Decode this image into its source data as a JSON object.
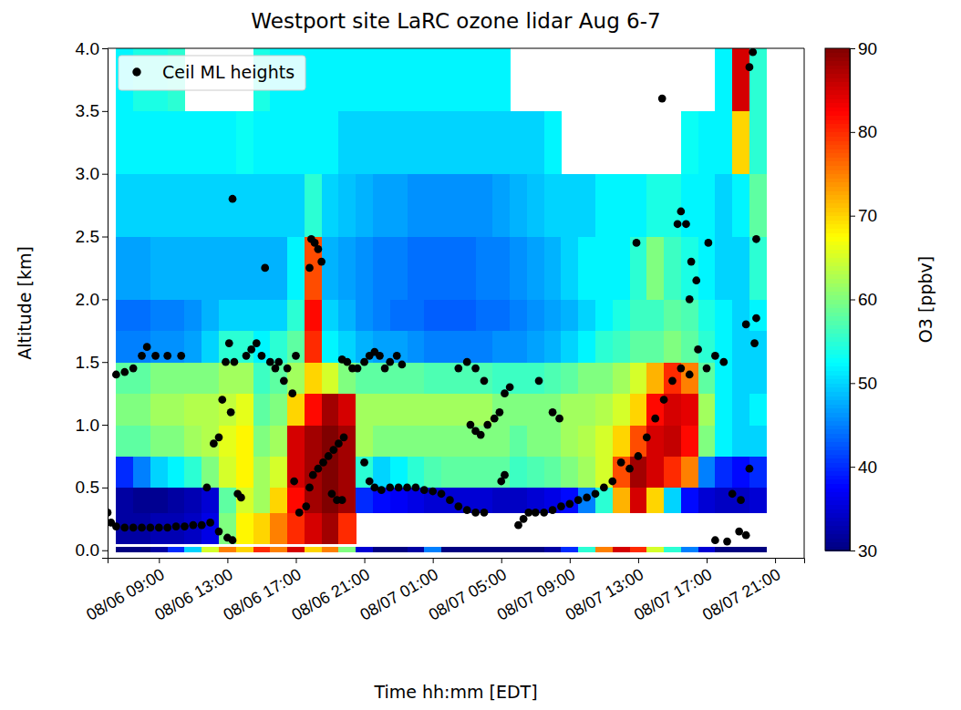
{
  "chart_data": {
    "type": "heatmap",
    "title": "Westport site LaRC ozone lidar Aug 6-7",
    "x_label": "Time hh:mm [EDT]",
    "y_label": "Altitude [km]",
    "xlim": [
      6,
      46.7
    ],
    "ylim": [
      -0.06,
      4.0
    ],
    "xticks": [
      {
        "value": 9,
        "label": "08/06 09:00"
      },
      {
        "value": 13,
        "label": "08/06 13:00"
      },
      {
        "value": 17,
        "label": "08/06 17:00"
      },
      {
        "value": 21,
        "label": "08/06 21:00"
      },
      {
        "value": 25,
        "label": "08/07 01:00"
      },
      {
        "value": 29,
        "label": "08/07 05:00"
      },
      {
        "value": 33,
        "label": "08/07 09:00"
      },
      {
        "value": 37,
        "label": "08/07 13:00"
      },
      {
        "value": 41,
        "label": "08/07 17:00"
      },
      {
        "value": 45,
        "label": "08/07 21:00"
      }
    ],
    "yticks": [
      {
        "value": 0,
        "label": "0.0"
      },
      {
        "value": 0.5,
        "label": "0.5"
      },
      {
        "value": 1,
        "label": "1.0"
      },
      {
        "value": 1.5,
        "label": "1.5"
      },
      {
        "value": 2,
        "label": "2.0"
      },
      {
        "value": 2.5,
        "label": "2.5"
      },
      {
        "value": 3,
        "label": "3.0"
      },
      {
        "value": 3.5,
        "label": "3.5"
      },
      {
        "value": 4,
        "label": "4.0"
      }
    ],
    "grid": false,
    "legend": "upper left",
    "cells": {
      "x_edges": [
        6.5,
        7.5,
        8.5,
        9.5,
        10.5,
        11.5,
        12.5,
        13.5,
        14.5,
        15.5,
        16.5,
        17.5,
        18.5,
        19.5,
        20.5,
        21.5,
        22.5,
        23.5,
        24.5,
        25.5,
        26.5,
        27.5,
        28.5,
        29.5,
        30.5,
        31.5,
        32.5,
        33.5,
        34.5,
        35.5,
        36.5,
        37.5,
        38.5,
        39.5,
        40.5,
        41.5,
        42.5,
        43.5,
        44.5
      ],
      "y_edges": [
        0.05,
        0.3,
        0.5,
        0.75,
        1.0,
        1.25,
        1.5,
        1.75,
        2.0,
        2.5,
        3.0,
        3.5,
        4.0
      ],
      "values": [
        [
          32,
          32,
          33,
          33,
          34,
          36,
          60,
          68,
          70,
          75,
          80,
          85,
          88,
          80,
          null,
          null,
          null,
          null,
          null,
          null,
          null,
          null,
          null,
          null,
          null,
          null,
          null,
          null,
          null,
          null,
          null,
          null,
          null,
          null,
          null,
          null,
          null,
          null
        ],
        [
          32,
          31,
          31,
          32,
          33,
          35,
          58,
          65,
          62,
          70,
          82,
          88,
          90,
          88,
          40,
          38,
          37,
          36,
          35,
          35,
          35,
          35,
          34,
          34,
          35,
          36,
          38,
          45,
          55,
          72,
          85,
          70,
          50,
          38,
          35,
          34,
          34,
          35
        ],
        [
          40,
          45,
          50,
          52,
          55,
          60,
          65,
          68,
          62,
          65,
          85,
          88,
          90,
          88,
          55,
          50,
          52,
          55,
          57,
          58,
          58,
          58,
          58,
          56,
          57,
          58,
          60,
          62,
          65,
          78,
          88,
          85,
          80,
          75,
          45,
          40,
          38,
          40
        ],
        [
          58,
          58,
          60,
          60,
          62,
          63,
          66,
          68,
          60,
          62,
          85,
          88,
          90,
          88,
          62,
          60,
          60,
          60,
          60,
          60,
          60,
          60,
          60,
          58,
          60,
          60,
          62,
          63,
          65,
          70,
          78,
          85,
          86,
          82,
          60,
          52,
          50,
          50
        ],
        [
          60,
          60,
          62,
          62,
          63,
          63,
          64,
          66,
          58,
          60,
          70,
          82,
          88,
          85,
          62,
          62,
          62,
          62,
          62,
          62,
          62,
          62,
          60,
          60,
          60,
          60,
          62,
          62,
          63,
          65,
          70,
          82,
          85,
          84,
          62,
          52,
          50,
          52
        ],
        [
          58,
          58,
          60,
          60,
          60,
          60,
          62,
          62,
          56,
          58,
          62,
          70,
          65,
          60,
          58,
          58,
          58,
          58,
          57,
          57,
          57,
          57,
          56,
          56,
          56,
          57,
          58,
          60,
          60,
          62,
          65,
          72,
          80,
          75,
          58,
          52,
          50,
          50
        ],
        [
          45,
          45,
          46,
          46,
          47,
          50,
          55,
          55,
          52,
          55,
          58,
          80,
          52,
          50,
          48,
          47,
          47,
          46,
          45,
          45,
          45,
          45,
          46,
          46,
          47,
          48,
          50,
          52,
          55,
          56,
          58,
          58,
          60,
          58,
          55,
          52,
          50,
          50
        ],
        [
          44,
          44,
          45,
          45,
          46,
          48,
          50,
          50,
          50,
          50,
          55,
          82,
          50,
          48,
          46,
          45,
          44,
          44,
          43,
          43,
          43,
          44,
          44,
          45,
          46,
          47,
          48,
          50,
          52,
          54,
          56,
          56,
          58,
          57,
          54,
          52,
          50,
          52
        ],
        [
          47,
          47,
          48,
          48,
          48,
          48,
          48,
          48,
          48,
          48,
          52,
          78,
          48,
          47,
          46,
          45,
          45,
          44,
          44,
          44,
          44,
          45,
          45,
          46,
          47,
          48,
          50,
          52,
          52,
          52,
          55,
          60,
          56,
          54,
          52,
          50,
          50,
          55
        ],
        [
          50,
          50,
          50,
          50,
          50,
          50,
          50,
          50,
          50,
          50,
          50,
          55,
          50,
          49,
          48,
          47,
          47,
          46,
          46,
          46,
          46,
          46,
          47,
          48,
          49,
          50,
          50,
          50,
          52,
          52,
          52,
          54,
          54,
          52,
          52,
          50,
          52,
          58
        ],
        [
          52,
          52,
          52,
          52,
          52,
          52,
          52,
          53,
          52,
          52,
          52,
          52,
          52,
          50,
          50,
          50,
          50,
          50,
          50,
          50,
          50,
          50,
          50,
          50,
          50,
          52,
          null,
          null,
          null,
          null,
          null,
          null,
          null,
          53,
          52,
          52,
          70,
          55
        ],
        [
          52,
          54,
          54,
          55,
          null,
          null,
          null,
          null,
          54,
          52,
          52,
          52,
          52,
          52,
          52,
          52,
          52,
          52,
          52,
          52,
          52,
          52,
          52,
          null,
          null,
          null,
          null,
          null,
          null,
          null,
          null,
          null,
          null,
          null,
          null,
          52,
          85,
          55
        ]
      ]
    },
    "surface": {
      "y_edges": [
        -0.02,
        0.03
      ],
      "values": [
        30,
        30,
        32,
        40,
        50,
        65,
        75,
        70,
        80,
        75,
        85,
        70,
        75,
        60,
        35,
        30,
        30,
        32,
        45,
        30,
        30,
        30,
        30,
        30,
        30,
        32,
        40,
        55,
        75,
        85,
        80,
        65,
        55,
        45,
        35,
        30,
        30,
        30
      ]
    },
    "colorbar": {
      "label": "O3 [ppbv]",
      "range": [
        30,
        90
      ],
      "ticks": [
        30,
        40,
        50,
        60,
        70,
        80,
        90
      ]
    },
    "series": [
      {
        "name": "Ceil ML heights",
        "type": "scatter",
        "color": "#000000",
        "marker": "circle",
        "x": [
          6.0,
          6.2,
          6.5,
          7.0,
          7.5,
          8.0,
          8.5,
          9.0,
          9.5,
          10.0,
          10.5,
          11.0,
          11.5,
          12.0,
          12.5,
          13.0,
          13.3,
          6.5,
          7.0,
          7.5,
          8.0,
          8.3,
          8.8,
          9.5,
          10.3,
          11.8,
          12.2,
          12.5,
          12.7,
          12.9,
          13.1,
          13.4,
          13.2,
          13.3,
          13.6,
          13.8,
          14.1,
          14.4,
          14.7,
          15.0,
          15.2,
          15.5,
          15.8,
          16.0,
          16.3,
          16.5,
          16.8,
          17.0,
          16.9,
          17.2,
          17.8,
          17.9,
          18.1,
          18.3,
          18.5,
          17.6,
          17.8,
          18.0,
          18.3,
          18.6,
          18.9,
          19.2,
          19.5,
          19.8,
          19.1,
          19.4,
          19.7,
          19.7,
          20.0,
          20.3,
          20.6,
          21.0,
          21.3,
          21.6,
          21.9,
          22.2,
          22.5,
          22.9,
          23.2,
          21.0,
          21.3,
          21.6,
          22.0,
          22.5,
          23.0,
          23.5,
          24.0,
          24.5,
          25.0,
          25.5,
          26.0,
          26.5,
          27.0,
          27.5,
          28.0,
          26.5,
          27.0,
          27.5,
          28.0,
          27.2,
          27.5,
          27.8,
          28.2,
          28.6,
          28.9,
          29.2,
          29.5,
          29.0,
          29.2,
          30.0,
          30.3,
          30.6,
          31.0,
          31.5,
          32.0,
          32.5,
          33.0,
          33.5,
          34.0,
          34.5,
          35.0,
          35.5,
          32.0,
          32.4,
          31.2,
          36.0,
          36.5,
          37.0,
          37.5,
          38.0,
          38.5,
          39.0,
          39.5,
          40.0,
          40.5,
          41.0,
          41.5,
          42.0,
          36.9,
          38.4,
          39.3,
          39.5,
          39.8,
          40.1,
          40.4,
          41.1,
          40.0,
          41.5,
          42.2,
          42.5,
          43.0,
          42.9,
          43.3,
          43.5,
          43.3,
          43.8,
          43.9,
          43.9,
          43.5,
          43.7
        ],
        "values": [
          0.3,
          0.22,
          0.19,
          0.18,
          0.18,
          0.18,
          0.18,
          0.18,
          0.18,
          0.19,
          0.19,
          0.2,
          0.2,
          0.22,
          0.15,
          0.1,
          0.08,
          1.4,
          1.42,
          1.45,
          1.55,
          1.62,
          1.55,
          1.55,
          1.55,
          0.5,
          0.85,
          0.9,
          1.2,
          1.5,
          1.65,
          1.5,
          1.1,
          2.8,
          0.45,
          0.42,
          1.55,
          1.6,
          1.65,
          1.55,
          2.25,
          1.5,
          1.45,
          1.5,
          1.35,
          1.45,
          1.25,
          1.55,
          0.55,
          0.3,
          2.25,
          2.48,
          2.45,
          2.4,
          2.3,
          0.35,
          0.5,
          0.6,
          0.65,
          0.7,
          0.75,
          0.8,
          0.85,
          0.9,
          0.45,
          0.4,
          0.4,
          1.52,
          1.5,
          1.45,
          1.45,
          1.5,
          1.55,
          1.58,
          1.55,
          1.45,
          1.5,
          1.55,
          1.48,
          0.7,
          0.55,
          0.5,
          0.48,
          0.5,
          0.5,
          0.5,
          0.5,
          0.48,
          0.47,
          0.45,
          0.4,
          0.35,
          0.32,
          0.3,
          0.3,
          1.45,
          1.5,
          1.45,
          1.35,
          1.0,
          0.95,
          0.92,
          1.0,
          1.05,
          1.1,
          1.25,
          1.3,
          0.55,
          0.6,
          0.2,
          0.25,
          0.3,
          0.3,
          0.3,
          0.32,
          0.35,
          0.37,
          0.4,
          0.42,
          0.45,
          0.5,
          0.55,
          1.1,
          1.05,
          1.35,
          0.7,
          0.65,
          0.75,
          0.9,
          1.05,
          1.2,
          1.35,
          1.45,
          1.4,
          1.6,
          1.45,
          1.55,
          1.5,
          2.45,
          3.6,
          2.6,
          2.7,
          2.6,
          2.3,
          2.15,
          2.45,
          2.0,
          0.08,
          0.07,
          0.45,
          0.4,
          0.15,
          0.12,
          0.65,
          1.8,
          1.65,
          1.85,
          2.48,
          3.85,
          3.97
        ]
      }
    ]
  }
}
